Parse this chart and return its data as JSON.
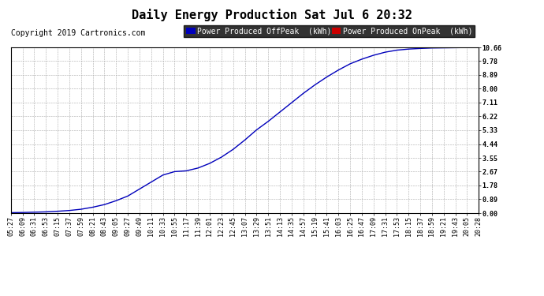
{
  "title": "Daily Energy Production Sat Jul 6 20:32",
  "copyright": "Copyright 2019 Cartronics.com",
  "legend_offpeak_color": "#0000bb",
  "legend_onpeak_color": "#cc0000",
  "line_color": "#0000bb",
  "background_color": "#ffffff",
  "plot_bg_color": "#ffffff",
  "grid_color": "#aaaaaa",
  "yticks": [
    0.0,
    0.89,
    1.78,
    2.67,
    3.55,
    4.44,
    5.33,
    6.22,
    7.11,
    8.0,
    8.89,
    9.78,
    10.66
  ],
  "xtick_labels": [
    "05:27",
    "06:09",
    "06:31",
    "06:53",
    "07:15",
    "07:37",
    "07:59",
    "08:21",
    "08:43",
    "09:05",
    "09:27",
    "09:49",
    "10:11",
    "10:33",
    "10:55",
    "11:17",
    "11:39",
    "12:01",
    "12:23",
    "12:45",
    "13:07",
    "13:29",
    "13:51",
    "14:13",
    "14:35",
    "14:57",
    "15:19",
    "15:41",
    "16:03",
    "16:25",
    "16:47",
    "17:09",
    "17:31",
    "17:53",
    "18:15",
    "18:37",
    "18:59",
    "19:21",
    "19:43",
    "20:05",
    "20:28"
  ],
  "y_values": [
    0.03,
    0.04,
    0.06,
    0.08,
    0.12,
    0.17,
    0.25,
    0.38,
    0.55,
    0.8,
    1.1,
    1.55,
    2.0,
    2.45,
    2.67,
    2.72,
    2.9,
    3.2,
    3.6,
    4.1,
    4.7,
    5.35,
    5.9,
    6.5,
    7.1,
    7.7,
    8.25,
    8.75,
    9.2,
    9.6,
    9.9,
    10.15,
    10.35,
    10.48,
    10.55,
    10.59,
    10.62,
    10.63,
    10.64,
    10.65,
    10.66
  ],
  "ymin": 0.0,
  "ymax": 10.66,
  "title_fontsize": 11,
  "tick_fontsize": 6,
  "copyright_fontsize": 7,
  "legend_fontsize": 7
}
